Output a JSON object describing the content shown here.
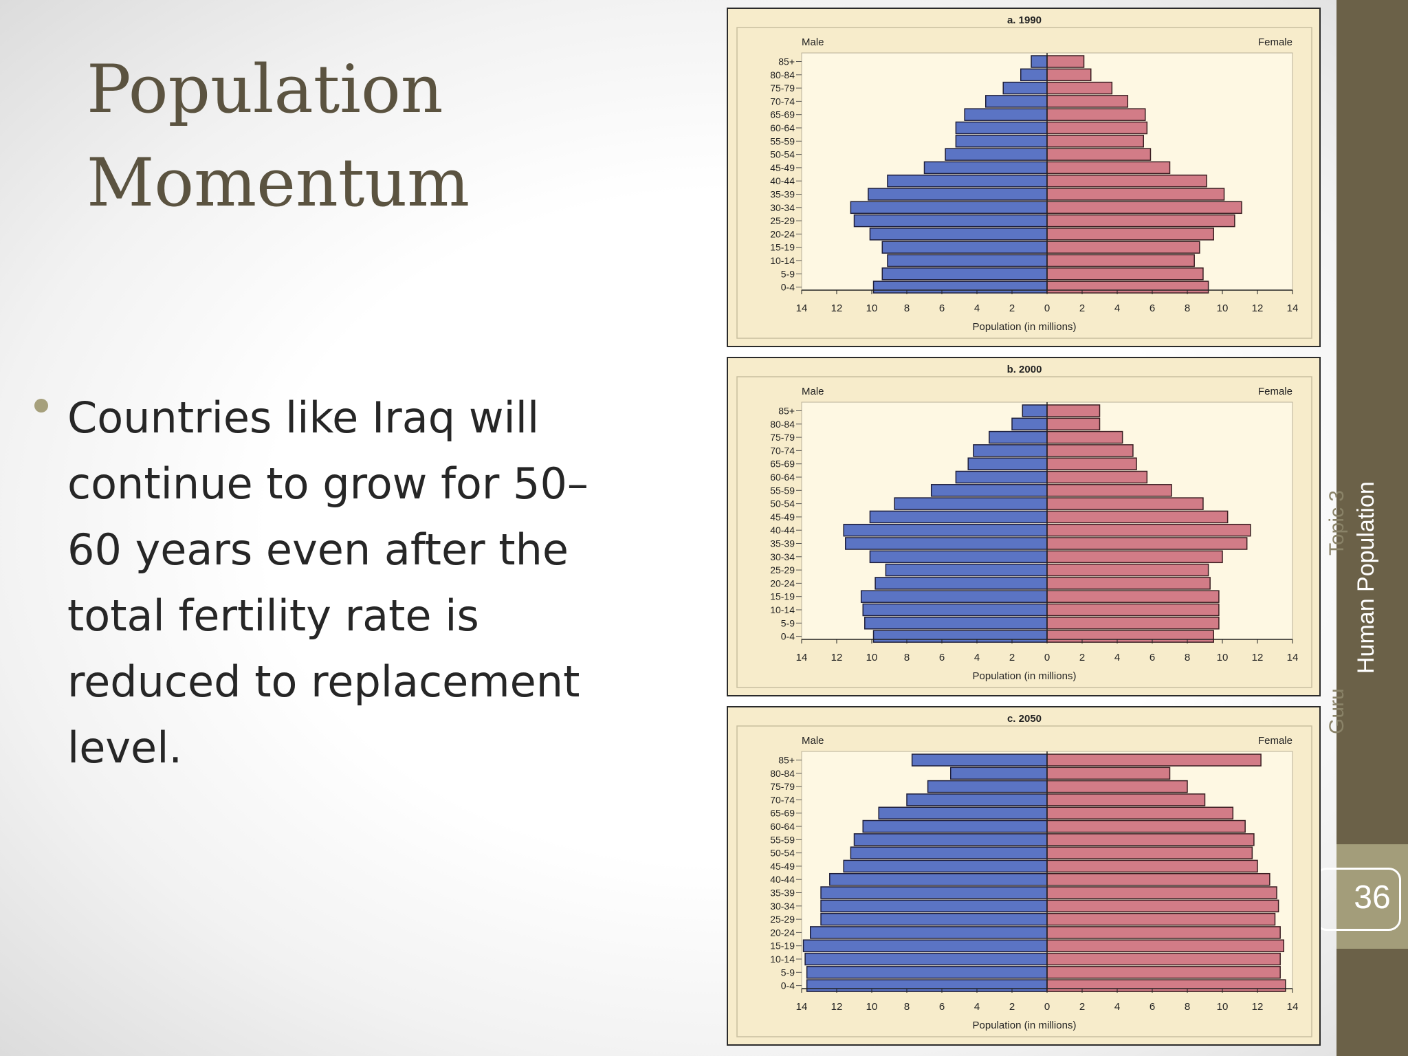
{
  "slide": {
    "title_line1": "Population",
    "title_line2": "Momentum",
    "bullet": "Countries like Iraq will continue to grow for 50–60 years even after the total fertility rate is reduced to replacement level.",
    "page_number": "36",
    "sidebar_title": "Human Population",
    "sidebar_topic": "Topic 3",
    "sidebar_author": "Guru"
  },
  "colors": {
    "male": "#5b74c4",
    "female": "#d27c87",
    "panel": "#f7eccb",
    "plot": "#fef8e3",
    "accent": "#6b6148"
  },
  "chart_data": [
    {
      "type": "bar",
      "title": "a. 1990",
      "left_label": "Male",
      "right_label": "Female",
      "xlabel": "Population (in millions)",
      "xlim": [
        -14,
        14
      ],
      "x_ticks": [
        "14",
        "12",
        "10",
        "8",
        "6",
        "4",
        "2",
        "0",
        "2",
        "4",
        "6",
        "8",
        "10",
        "12",
        "14"
      ],
      "categories": [
        "85+",
        "80-84",
        "75-79",
        "70-74",
        "65-69",
        "60-64",
        "55-59",
        "50-54",
        "45-49",
        "40-44",
        "35-39",
        "30-34",
        "25-29",
        "20-24",
        "15-19",
        "10-14",
        "5-9",
        "0-4"
      ],
      "series": [
        {
          "name": "Male",
          "values": [
            0.9,
            1.5,
            2.5,
            3.5,
            4.7,
            5.2,
            5.2,
            5.8,
            7.0,
            9.1,
            10.2,
            11.2,
            11.0,
            10.1,
            9.4,
            9.1,
            9.4,
            9.9
          ]
        },
        {
          "name": "Female",
          "values": [
            2.1,
            2.5,
            3.7,
            4.6,
            5.6,
            5.7,
            5.5,
            5.9,
            7.0,
            9.1,
            10.1,
            11.1,
            10.7,
            9.5,
            8.7,
            8.4,
            8.9,
            9.2
          ]
        }
      ]
    },
    {
      "type": "bar",
      "title": "b. 2000",
      "left_label": "Male",
      "right_label": "Female",
      "xlabel": "Population (in millions)",
      "xlim": [
        -14,
        14
      ],
      "x_ticks": [
        "14",
        "12",
        "10",
        "8",
        "6",
        "4",
        "2",
        "0",
        "2",
        "4",
        "6",
        "8",
        "10",
        "12",
        "14"
      ],
      "categories": [
        "85+",
        "80-84",
        "75-79",
        "70-74",
        "65-69",
        "60-64",
        "55-59",
        "50-54",
        "45-49",
        "40-44",
        "35-39",
        "30-34",
        "25-29",
        "20-24",
        "15-19",
        "10-14",
        "5-9",
        "0-4"
      ],
      "series": [
        {
          "name": "Male",
          "values": [
            1.4,
            2.0,
            3.3,
            4.2,
            4.5,
            5.2,
            6.6,
            8.7,
            10.1,
            11.6,
            11.5,
            10.1,
            9.2,
            9.8,
            10.6,
            10.5,
            10.4,
            9.9
          ]
        },
        {
          "name": "Female",
          "values": [
            3.0,
            3.0,
            4.3,
            4.9,
            5.1,
            5.7,
            7.1,
            8.9,
            10.3,
            11.6,
            11.4,
            10.0,
            9.2,
            9.3,
            9.8,
            9.8,
            9.8,
            9.5
          ]
        }
      ]
    },
    {
      "type": "bar",
      "title": "c. 2050",
      "left_label": "Male",
      "right_label": "Female",
      "xlabel": "Population (in millions)",
      "xlim": [
        -14,
        14
      ],
      "x_ticks": [
        "14",
        "12",
        "10",
        "8",
        "6",
        "4",
        "2",
        "0",
        "2",
        "4",
        "6",
        "8",
        "10",
        "12",
        "14"
      ],
      "categories": [
        "85+",
        "80-84",
        "75-79",
        "70-74",
        "65-69",
        "60-64",
        "55-59",
        "50-54",
        "45-49",
        "40-44",
        "35-39",
        "30-34",
        "25-29",
        "20-24",
        "15-19",
        "10-14",
        "5-9",
        "0-4"
      ],
      "series": [
        {
          "name": "Male",
          "values": [
            7.7,
            5.5,
            6.8,
            8.0,
            9.6,
            10.5,
            11.0,
            11.2,
            11.6,
            12.4,
            12.9,
            12.9,
            12.9,
            13.5,
            13.9,
            13.8,
            13.7,
            13.7
          ]
        },
        {
          "name": "Female",
          "values": [
            12.2,
            7.0,
            8.0,
            9.0,
            10.6,
            11.3,
            11.8,
            11.7,
            12.0,
            12.7,
            13.1,
            13.2,
            13.0,
            13.3,
            13.5,
            13.3,
            13.3,
            13.6
          ]
        }
      ]
    }
  ]
}
